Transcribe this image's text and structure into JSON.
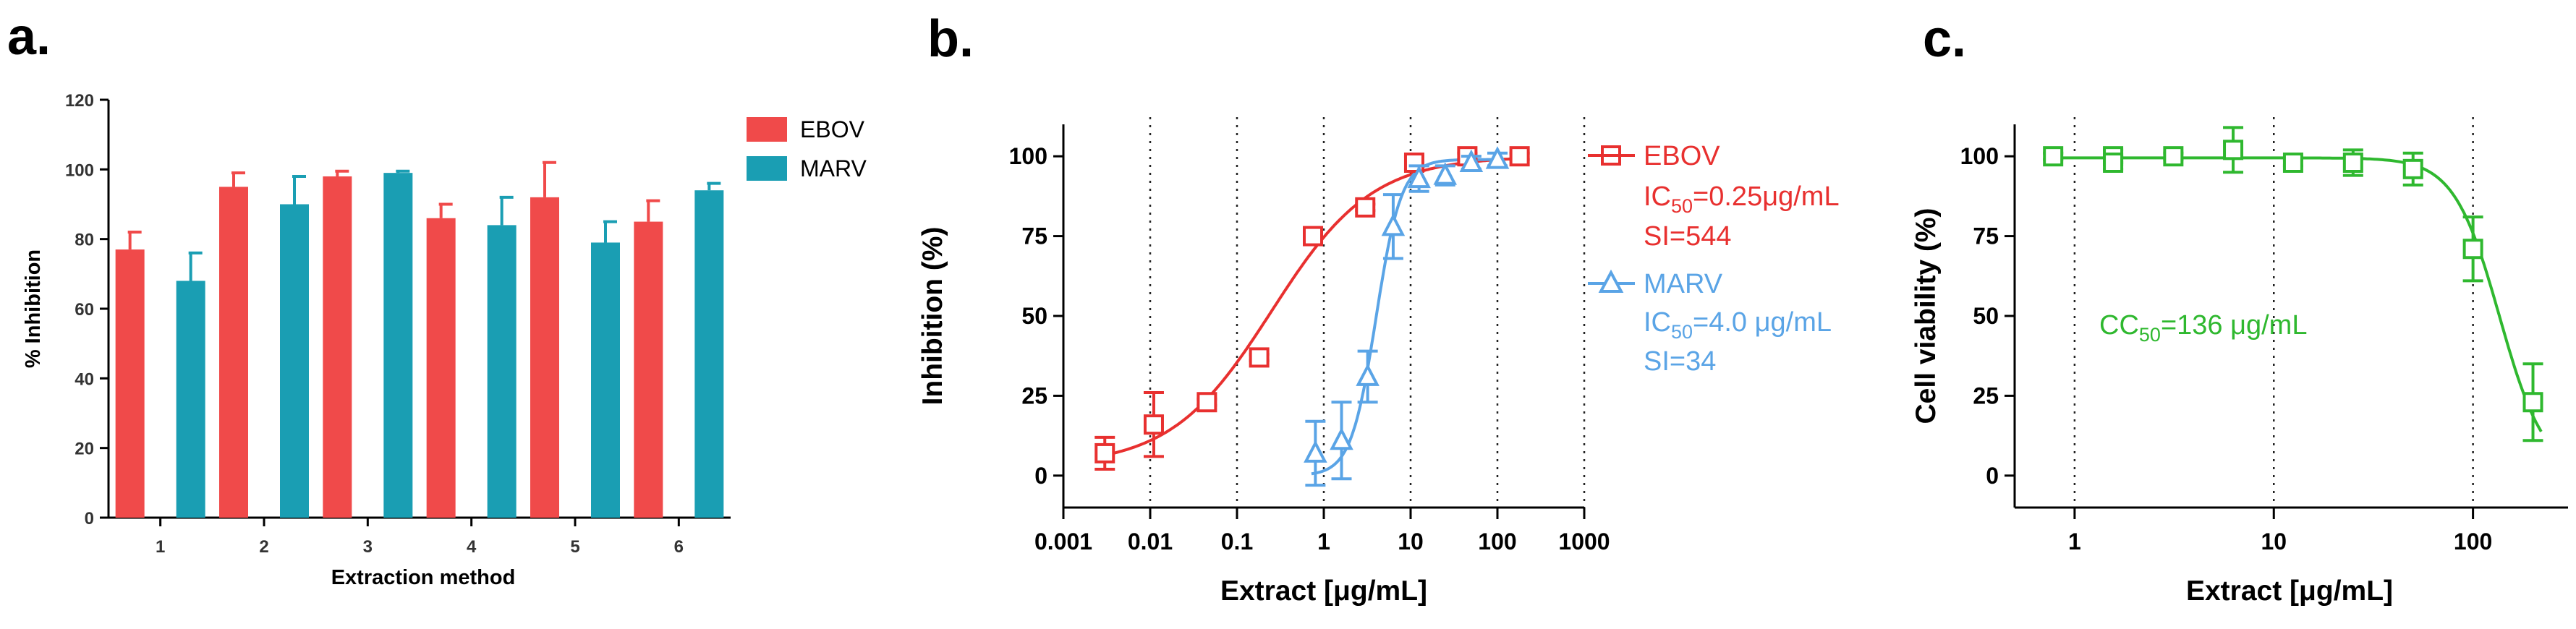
{
  "chart_data": [
    {
      "panel": "a.",
      "type": "bar",
      "title": "",
      "xlabel": "Extraction method",
      "ylabel": "% Inhibition",
      "ylim": [
        0,
        120
      ],
      "yticks": [
        0,
        20,
        40,
        60,
        80,
        100,
        120
      ],
      "categories": [
        "1",
        "2",
        "3",
        "4",
        "5",
        "6"
      ],
      "series": [
        {
          "name": "EBOV",
          "color": "#f04a4a",
          "values": [
            77,
            95,
            98,
            86,
            92,
            85
          ],
          "errors": [
            5,
            4,
            1.5,
            4,
            10,
            6
          ]
        },
        {
          "name": "MARV",
          "color": "#1a9eb3",
          "values": [
            68,
            90,
            99,
            84,
            79,
            94
          ],
          "errors": [
            8,
            8,
            0.5,
            8,
            6,
            2
          ]
        }
      ],
      "legend": "top-right"
    },
    {
      "panel": "b.",
      "type": "scatter",
      "title": "",
      "xlabel": "Extract [μg/mL]",
      "ylabel": "Inhibition (%)",
      "xscale": "log",
      "xlim": [
        0.001,
        1000
      ],
      "ylim": [
        -10,
        110
      ],
      "xticks": [
        0.001,
        0.01,
        0.1,
        1,
        10,
        100,
        1000
      ],
      "xticklabels": [
        "0.001",
        "0.01",
        "0.1",
        "1",
        "10",
        "100",
        "1000"
      ],
      "yticks": [
        0,
        25,
        50,
        75,
        100
      ],
      "grid_x_dotted": [
        0.01,
        0.1,
        1,
        10,
        100,
        1000
      ],
      "series": [
        {
          "name": "EBOV",
          "color": "#e8302f",
          "marker": "square",
          "x": [
            0.003,
            0.011,
            0.045,
            0.18,
            0.75,
            3,
            11,
            45,
            180
          ],
          "y": [
            7,
            16,
            23,
            37,
            75,
            84,
            98,
            100,
            100
          ],
          "errors": [
            5,
            10,
            1,
            1,
            1,
            1,
            2,
            1,
            1
          ],
          "fit": {
            "bottom": 3,
            "top": 100,
            "ic50": 0.25,
            "hill": 0.75
          },
          "annotation_lines": [
            "IC",
            "50",
            "=0.25μg/mL",
            "SI=544"
          ]
        },
        {
          "name": "MARV",
          "color": "#5aa4e6",
          "marker": "triangle",
          "x": [
            0.8,
            1.6,
            3.2,
            6.3,
            12.5,
            25,
            50,
            100
          ],
          "y": [
            7,
            11,
            31,
            78,
            93,
            94,
            98,
            99
          ],
          "errors": [
            10,
            12,
            8,
            10,
            4,
            3,
            2,
            2
          ],
          "fit": {
            "bottom": 0,
            "top": 99,
            "ic50": 4.0,
            "hill": 3.0
          },
          "annotation_lines": [
            "IC",
            "50",
            "=4.0 μg/mL",
            "SI=34"
          ]
        }
      ],
      "legend": "right"
    },
    {
      "panel": "c.",
      "type": "scatter",
      "title": "",
      "xlabel": "Extract [μg/mL]",
      "ylabel": "Cell viability (%)",
      "xscale": "log",
      "xlim": [
        0.5,
        300
      ],
      "ylim": [
        -10,
        110
      ],
      "xticks": [
        1,
        10,
        100
      ],
      "xticklabels": [
        "1",
        "10",
        "100"
      ],
      "yticks": [
        0,
        25,
        50,
        75,
        100
      ],
      "grid_x_dotted": [
        1,
        10,
        100
      ],
      "series": [
        {
          "name": "CC50",
          "color": "#2fb82f",
          "marker": "square",
          "x": [
            0.78,
            1.56,
            1.56,
            3.13,
            6.25,
            12.5,
            25,
            50,
            100,
            200
          ],
          "y": [
            100,
            100,
            98,
            100,
            102,
            98,
            98,
            96,
            71,
            23
          ],
          "errors": [
            1,
            2,
            2,
            1,
            7,
            1,
            4,
            5,
            10,
            12
          ],
          "fit": {
            "bottom": 0,
            "top": 99.5,
            "ic50": 136,
            "hill": 3.8
          }
        }
      ],
      "annotation_lines": [
        "CC",
        "50",
        "=136 μg/mL"
      ]
    }
  ]
}
